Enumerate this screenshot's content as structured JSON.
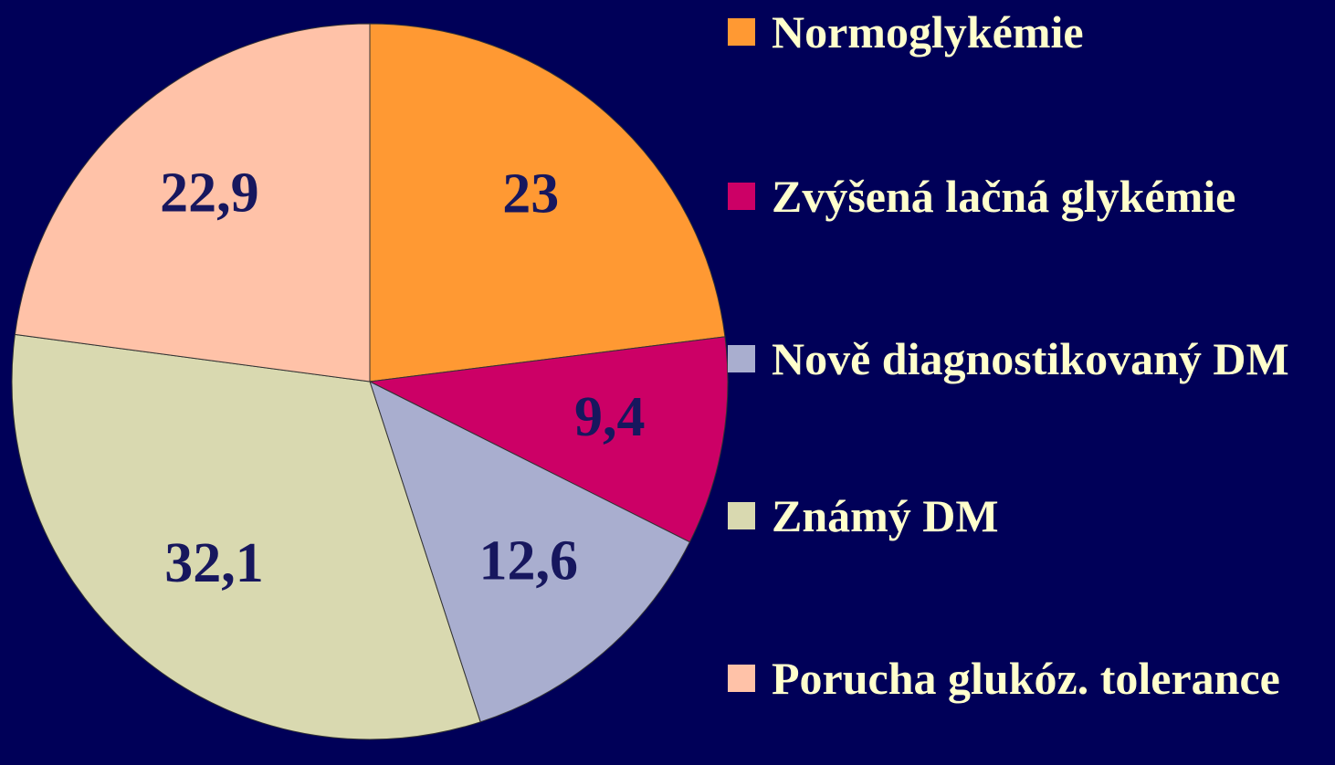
{
  "chart_data": {
    "type": "pie",
    "categories": [
      "Normoglykémie",
      "Zvýšená lačná glykémie",
      "Nově diagnostikovaný DM",
      "Známý DM",
      "Porucha glukóz. tolerance"
    ],
    "values": [
      23,
      9.4,
      12.6,
      32.1,
      22.9
    ],
    "value_labels": [
      "23",
      "9,4",
      "12,6",
      "32,1",
      "22,9"
    ],
    "colors": [
      "#ff9933",
      "#cc0066",
      "#a9aecf",
      "#d9d9b0",
      "#ffc2a8"
    ],
    "legend": "right"
  }
}
